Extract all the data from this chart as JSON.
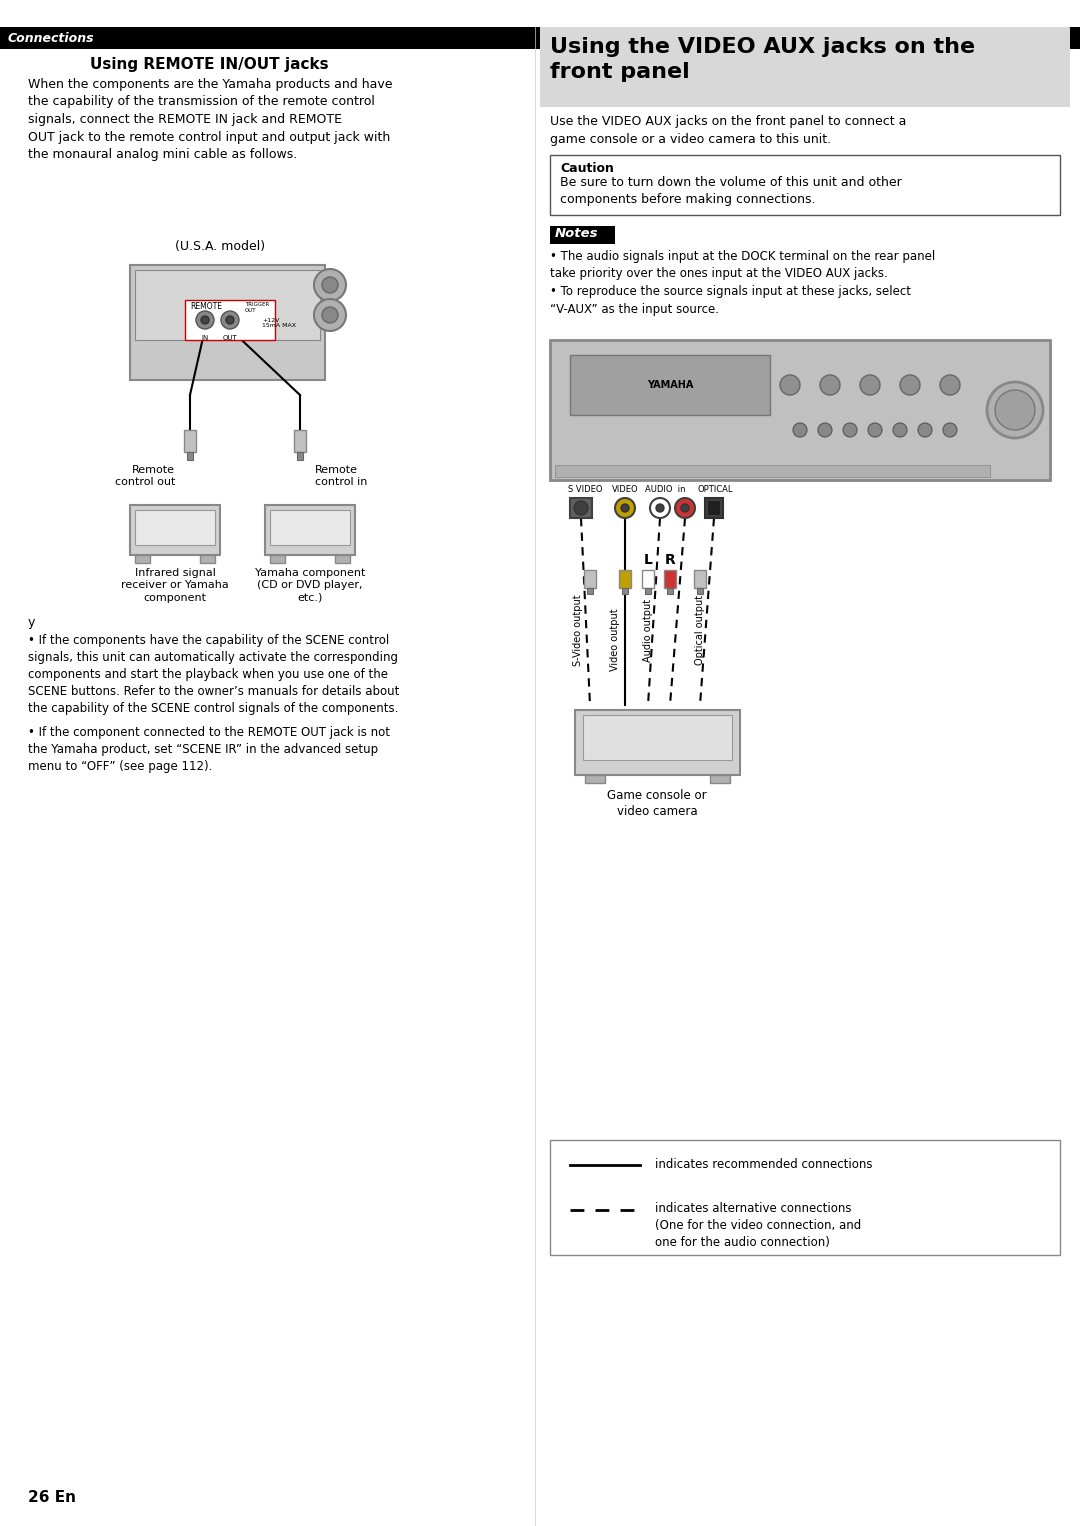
{
  "page_bg": "#ffffff",
  "header_bar_color": "#000000",
  "header_text": "Connections",
  "header_text_color": "#ffffff",
  "left_section_title": "Using REMOTE IN/OUT jacks",
  "left_body_text": "When the components are the Yamaha products and have\nthe capability of the transmission of the remote control\nsignals, connect the REMOTE IN jack and REMOTE\nOUT jack to the remote control input and output jack with\nthe monaural analog mini cable as follows.",
  "usa_model_label": "(U.S.A. model)",
  "remote_control_out_label": "Remote\ncontrol out",
  "remote_control_in_label": "Remote\ncontrol in",
  "infrared_label": "Infrared signal\nreceiver or Yamaha\ncomponent",
  "yamaha_component_label": "Yamaha component\n(CD or DVD player,\netc.)",
  "note_y_label": "y",
  "bullet1": "If the components have the capability of the SCENE control\nsignals, this unit can automatically activate the corresponding\ncomponents and start the playback when you use one of the\nSCENE buttons. Refer to the owner’s manuals for details about\nthe capability of the SCENE control signals of the components.",
  "bullet2": "If the component connected to the REMOTE OUT jack is not\nthe Yamaha product, set “SCENE IR” in the advanced setup\nmenu to “OFF” (see page 112).",
  "right_section_title": "Using the VIDEO AUX jacks on the\nfront panel",
  "right_section_bg": "#d8d8d8",
  "right_body_text": "Use the VIDEO AUX jacks on the front panel to connect a\ngame console or a video camera to this unit.",
  "caution_box_title": "Caution",
  "caution_box_text": "Be sure to turn down the volume of this unit and other\ncomponents before making connections.",
  "notes_title": "Notes",
  "note1": "The audio signals input at the DOCK terminal on the rear panel\ntake priority over the ones input at the VIDEO AUX jacks.",
  "note2": "To reproduce the source signals input at these jacks, select\n“V-AUX” as the input source.",
  "svideo_label": "S VIDEO",
  "video_label": "VIDEO",
  "audio_label": "AUDIO  in",
  "optical_label": "OPTICAL",
  "svideo_output_label": "S-Video output",
  "video_output_label": "Video output",
  "l_label": "L",
  "r_label": "R",
  "audio_output_label": "Audio output",
  "optical_output_label": "Optical output",
  "game_console_label": "Game console or\nvideo camera",
  "legend_solid_label": "indicates recommended connections",
  "legend_dashed_label": "indicates alternative connections\n(One for the video connection, and\none for the audio connection)",
  "page_number": "26 En"
}
